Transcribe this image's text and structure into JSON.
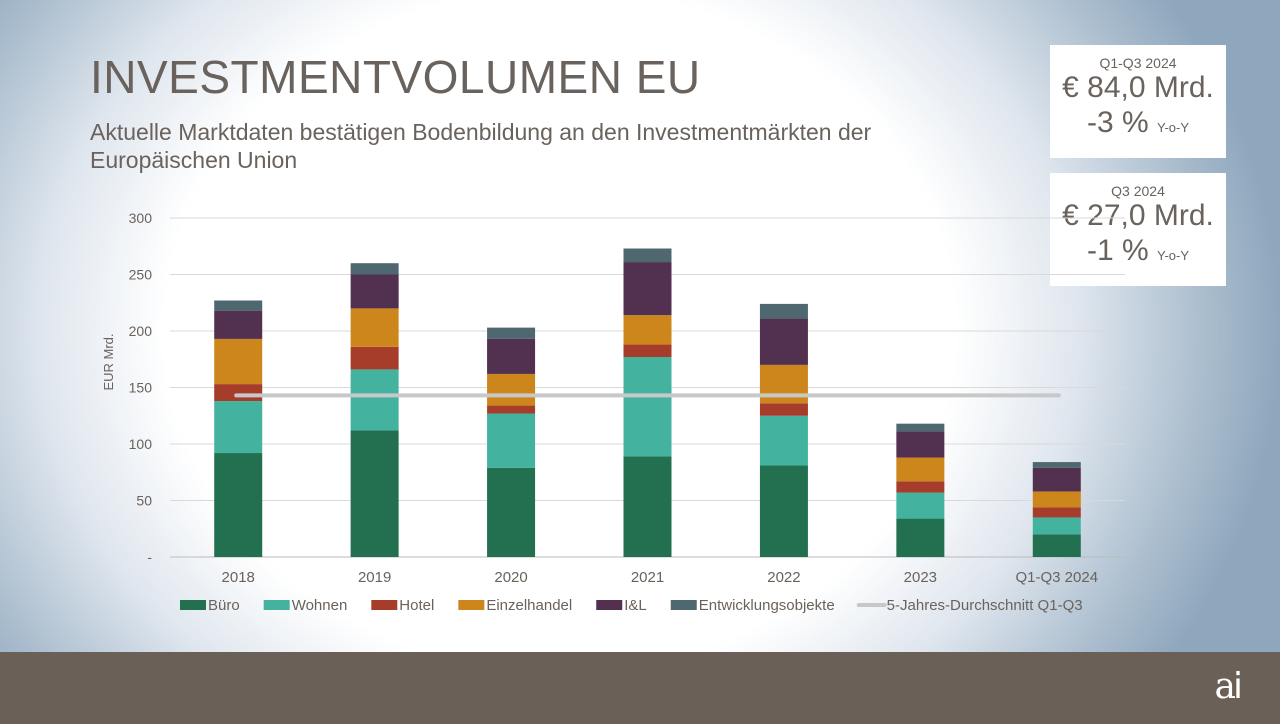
{
  "header": {
    "title": "INVESTMENTVOLUMEN EU",
    "subtitle": "Aktuelle Marktdaten bestätigen Bodenbildung an den Investmentmärkten der Europäischen Union"
  },
  "kpis": [
    {
      "period": "Q1-Q3 2024",
      "value": "€ 84,0 Mrd.",
      "change": "-3 %",
      "change_unit": "Y-o-Y"
    },
    {
      "period": "Q3 2024",
      "value": "€ 27,0 Mrd.",
      "change": "-1 %",
      "change_unit": "Y-o-Y"
    }
  ],
  "logo": {
    "text": "ai"
  },
  "chart_data": {
    "type": "bar",
    "stacked": true,
    "ylabel": "EUR Mrd.",
    "ylim": [
      0,
      300
    ],
    "yticks": [
      0,
      50,
      100,
      150,
      200,
      250,
      300
    ],
    "ytick_labels": [
      "-",
      "50",
      "100",
      "150",
      "200",
      "250",
      "300"
    ],
    "grid": true,
    "legend": "bottom",
    "categories": [
      "2018",
      "2019",
      "2020",
      "2021",
      "2022",
      "2023",
      "Q1-Q3 2024"
    ],
    "series": [
      {
        "name": "Büro",
        "color": "#22704f",
        "values": [
          92,
          112,
          79,
          89,
          81,
          34,
          20
        ]
      },
      {
        "name": "Wohnen",
        "color": "#43b3a0",
        "values": [
          46,
          54,
          48,
          88,
          44,
          23,
          15
        ]
      },
      {
        "name": "Hotel",
        "color": "#a63d2a",
        "values": [
          15,
          20,
          7,
          11,
          11,
          10,
          9
        ]
      },
      {
        "name": "Einzelhandel",
        "color": "#cc861b",
        "values": [
          40,
          34,
          28,
          26,
          34,
          21,
          14
        ]
      },
      {
        "name": "I&L",
        "color": "#523050",
        "values": [
          25,
          30,
          31,
          47,
          41,
          23,
          21
        ]
      },
      {
        "name": "Entwicklungsobjekte",
        "color": "#4f6870",
        "values": [
          9,
          10,
          10,
          12,
          13,
          7,
          5
        ]
      }
    ],
    "average_line": {
      "name": "5-Jahres-Durchschnitt Q1-Q3",
      "value": 143,
      "color": "#c8c8c8"
    }
  }
}
